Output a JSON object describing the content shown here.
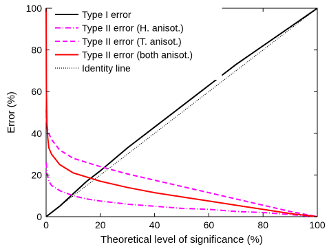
{
  "chart_data": {
    "type": "line",
    "xlabel": "Theoretical level of significance (%)",
    "ylabel": "Error (%)",
    "xlim": [
      0,
      100
    ],
    "ylim": [
      0,
      100
    ],
    "xticks": [
      0,
      20,
      40,
      60,
      80,
      100
    ],
    "yticks": [
      0,
      20,
      40,
      60,
      80,
      100
    ],
    "grid": false,
    "legend_position": "top-left",
    "series": [
      {
        "name": "Type I error",
        "color": "#000000",
        "style": "solid",
        "x": [
          0,
          2,
          5,
          10,
          15,
          20,
          30,
          40,
          50,
          60,
          70,
          80,
          90,
          100
        ],
        "y": [
          0,
          2,
          5,
          11,
          17,
          22,
          33,
          43,
          53,
          63,
          73,
          82,
          91,
          100
        ]
      },
      {
        "name": "Type II error (H. anisot.)",
        "color": "#ff00ff",
        "style": "dashdot",
        "x": [
          0,
          0.3,
          1,
          2,
          5,
          10,
          15,
          20,
          30,
          40,
          50,
          60,
          70,
          80,
          90,
          100
        ],
        "y": [
          26,
          21,
          17,
          15,
          12.5,
          10,
          8.5,
          7.5,
          6,
          5,
          4,
          3.5,
          2.5,
          2,
          1,
          0
        ]
      },
      {
        "name": "Type II error (T. anisot.)",
        "color": "#ff00ff",
        "style": "dashed",
        "x": [
          0,
          0.2,
          0.5,
          1,
          2,
          5,
          10,
          15,
          20,
          30,
          40,
          50,
          60,
          70,
          80,
          90,
          100
        ],
        "y": [
          51,
          45,
          42,
          40,
          37,
          32,
          28,
          26,
          24,
          20.5,
          17.5,
          14.5,
          11.5,
          8.5,
          5.5,
          2.5,
          0
        ]
      },
      {
        "name": "Type II error (both anisot.)",
        "color": "#ff0000",
        "style": "solid",
        "x": [
          0,
          0.1,
          0.3,
          0.6,
          1,
          2,
          5,
          10,
          15,
          20,
          30,
          40,
          50,
          60,
          70,
          80,
          90,
          100
        ],
        "y": [
          100,
          60,
          45,
          38,
          33,
          30,
          25,
          21,
          19,
          17,
          14,
          11.5,
          9.5,
          7.5,
          5.5,
          3.5,
          1.5,
          0
        ]
      },
      {
        "name": "Identity line",
        "color": "#000000",
        "style": "dotted",
        "x": [
          0,
          100
        ],
        "y": [
          0,
          100
        ]
      }
    ]
  }
}
